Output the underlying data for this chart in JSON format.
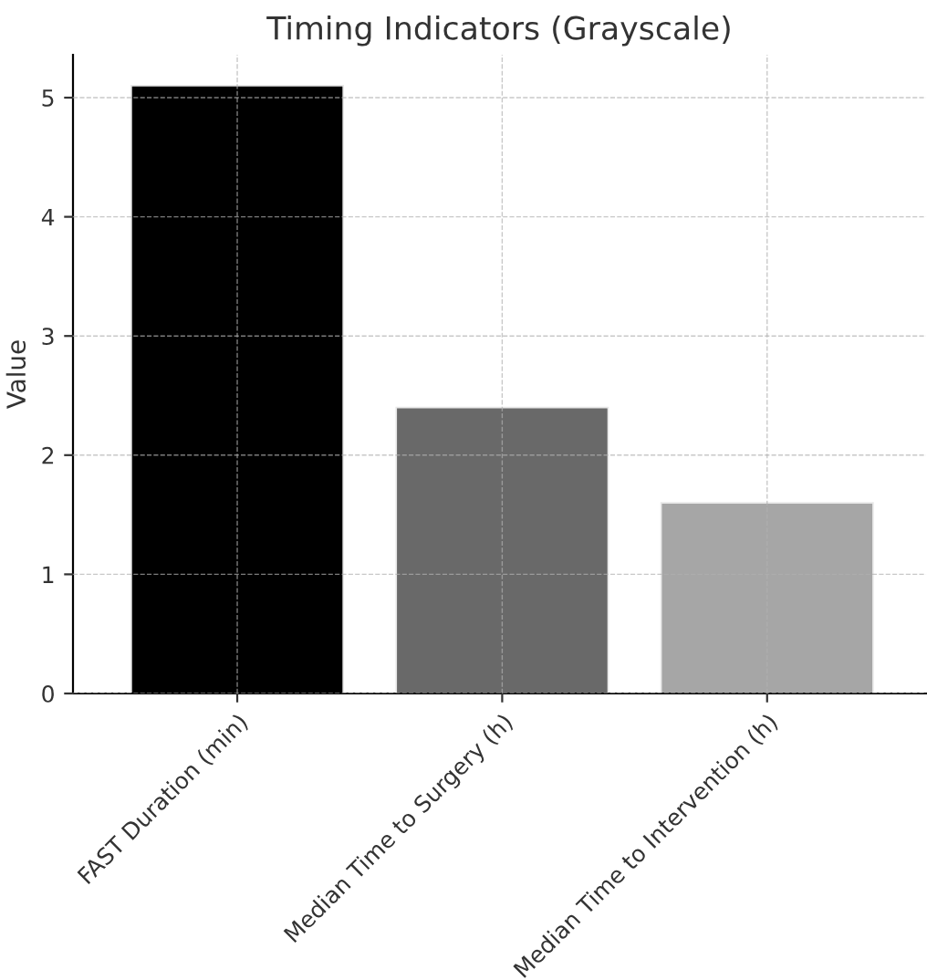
{
  "chart_data": {
    "type": "bar",
    "title": "Timing Indicators (Grayscale)",
    "ylabel": "Value",
    "categories": [
      "FAST Duration (min)",
      "Median Time to Surgery (h)",
      "Median Time to Intervention (h)"
    ],
    "values": [
      5.1,
      2.4,
      1.6
    ],
    "colors": [
      "#000000",
      "#696969",
      "#a6a6a6"
    ],
    "ylim": [
      0,
      5.36
    ],
    "yticks": [
      0,
      1,
      2,
      3,
      4,
      5
    ],
    "grid": true
  }
}
